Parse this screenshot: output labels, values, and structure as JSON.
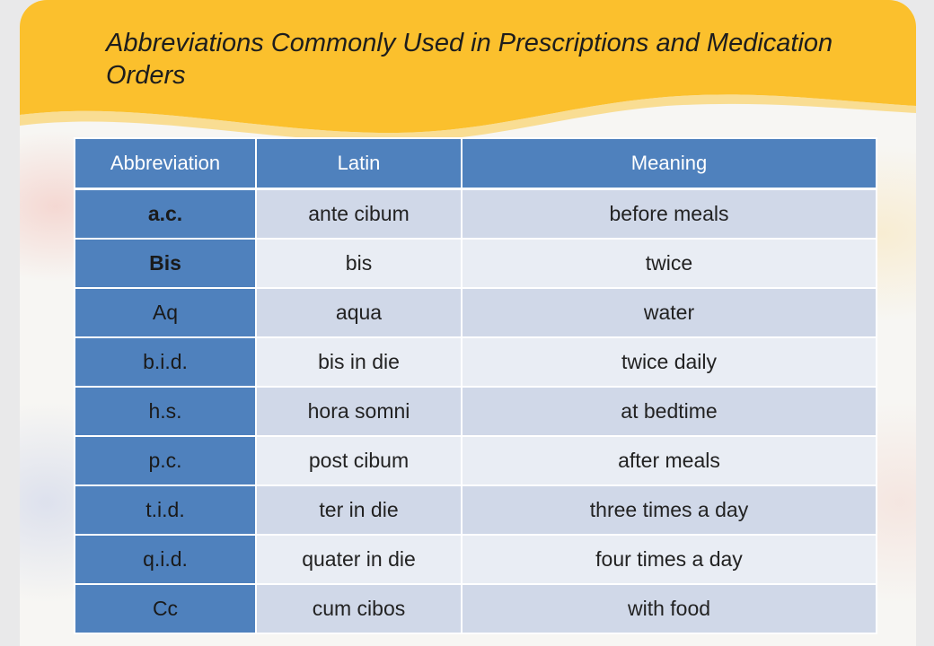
{
  "title": "Abbreviations Commonly Used in Prescriptions and Medication Orders",
  "colors": {
    "header_blue": "#4f81bd",
    "row_band_dark": "#d0d8e8",
    "row_band_light": "#e9edf4",
    "banner_yellow": "#fbc02d"
  },
  "table": {
    "headers": [
      "Abbreviation",
      "Latin",
      "Meaning"
    ],
    "rows": [
      {
        "abbreviation": "a.c.",
        "latin": "ante cibum",
        "meaning": "before meals",
        "bold": true
      },
      {
        "abbreviation": "Bis",
        "latin": "bis",
        "meaning": "twice",
        "bold": true
      },
      {
        "abbreviation": "Aq",
        "latin": "aqua",
        "meaning": "water"
      },
      {
        "abbreviation": "b.i.d.",
        "latin": "bis in die",
        "meaning": "twice daily"
      },
      {
        "abbreviation": "h.s.",
        "latin": "hora somni",
        "meaning": "at bedtime"
      },
      {
        "abbreviation": "p.c.",
        "latin": "post cibum",
        "meaning": "after meals"
      },
      {
        "abbreviation": "t.i.d.",
        "latin": "ter in die",
        "meaning": "three times a day"
      },
      {
        "abbreviation": "q.i.d.",
        "latin": "quater in die",
        "meaning": "four times a day"
      },
      {
        "abbreviation": "Cc",
        "latin": "cum cibos",
        "meaning": "with food"
      }
    ]
  }
}
